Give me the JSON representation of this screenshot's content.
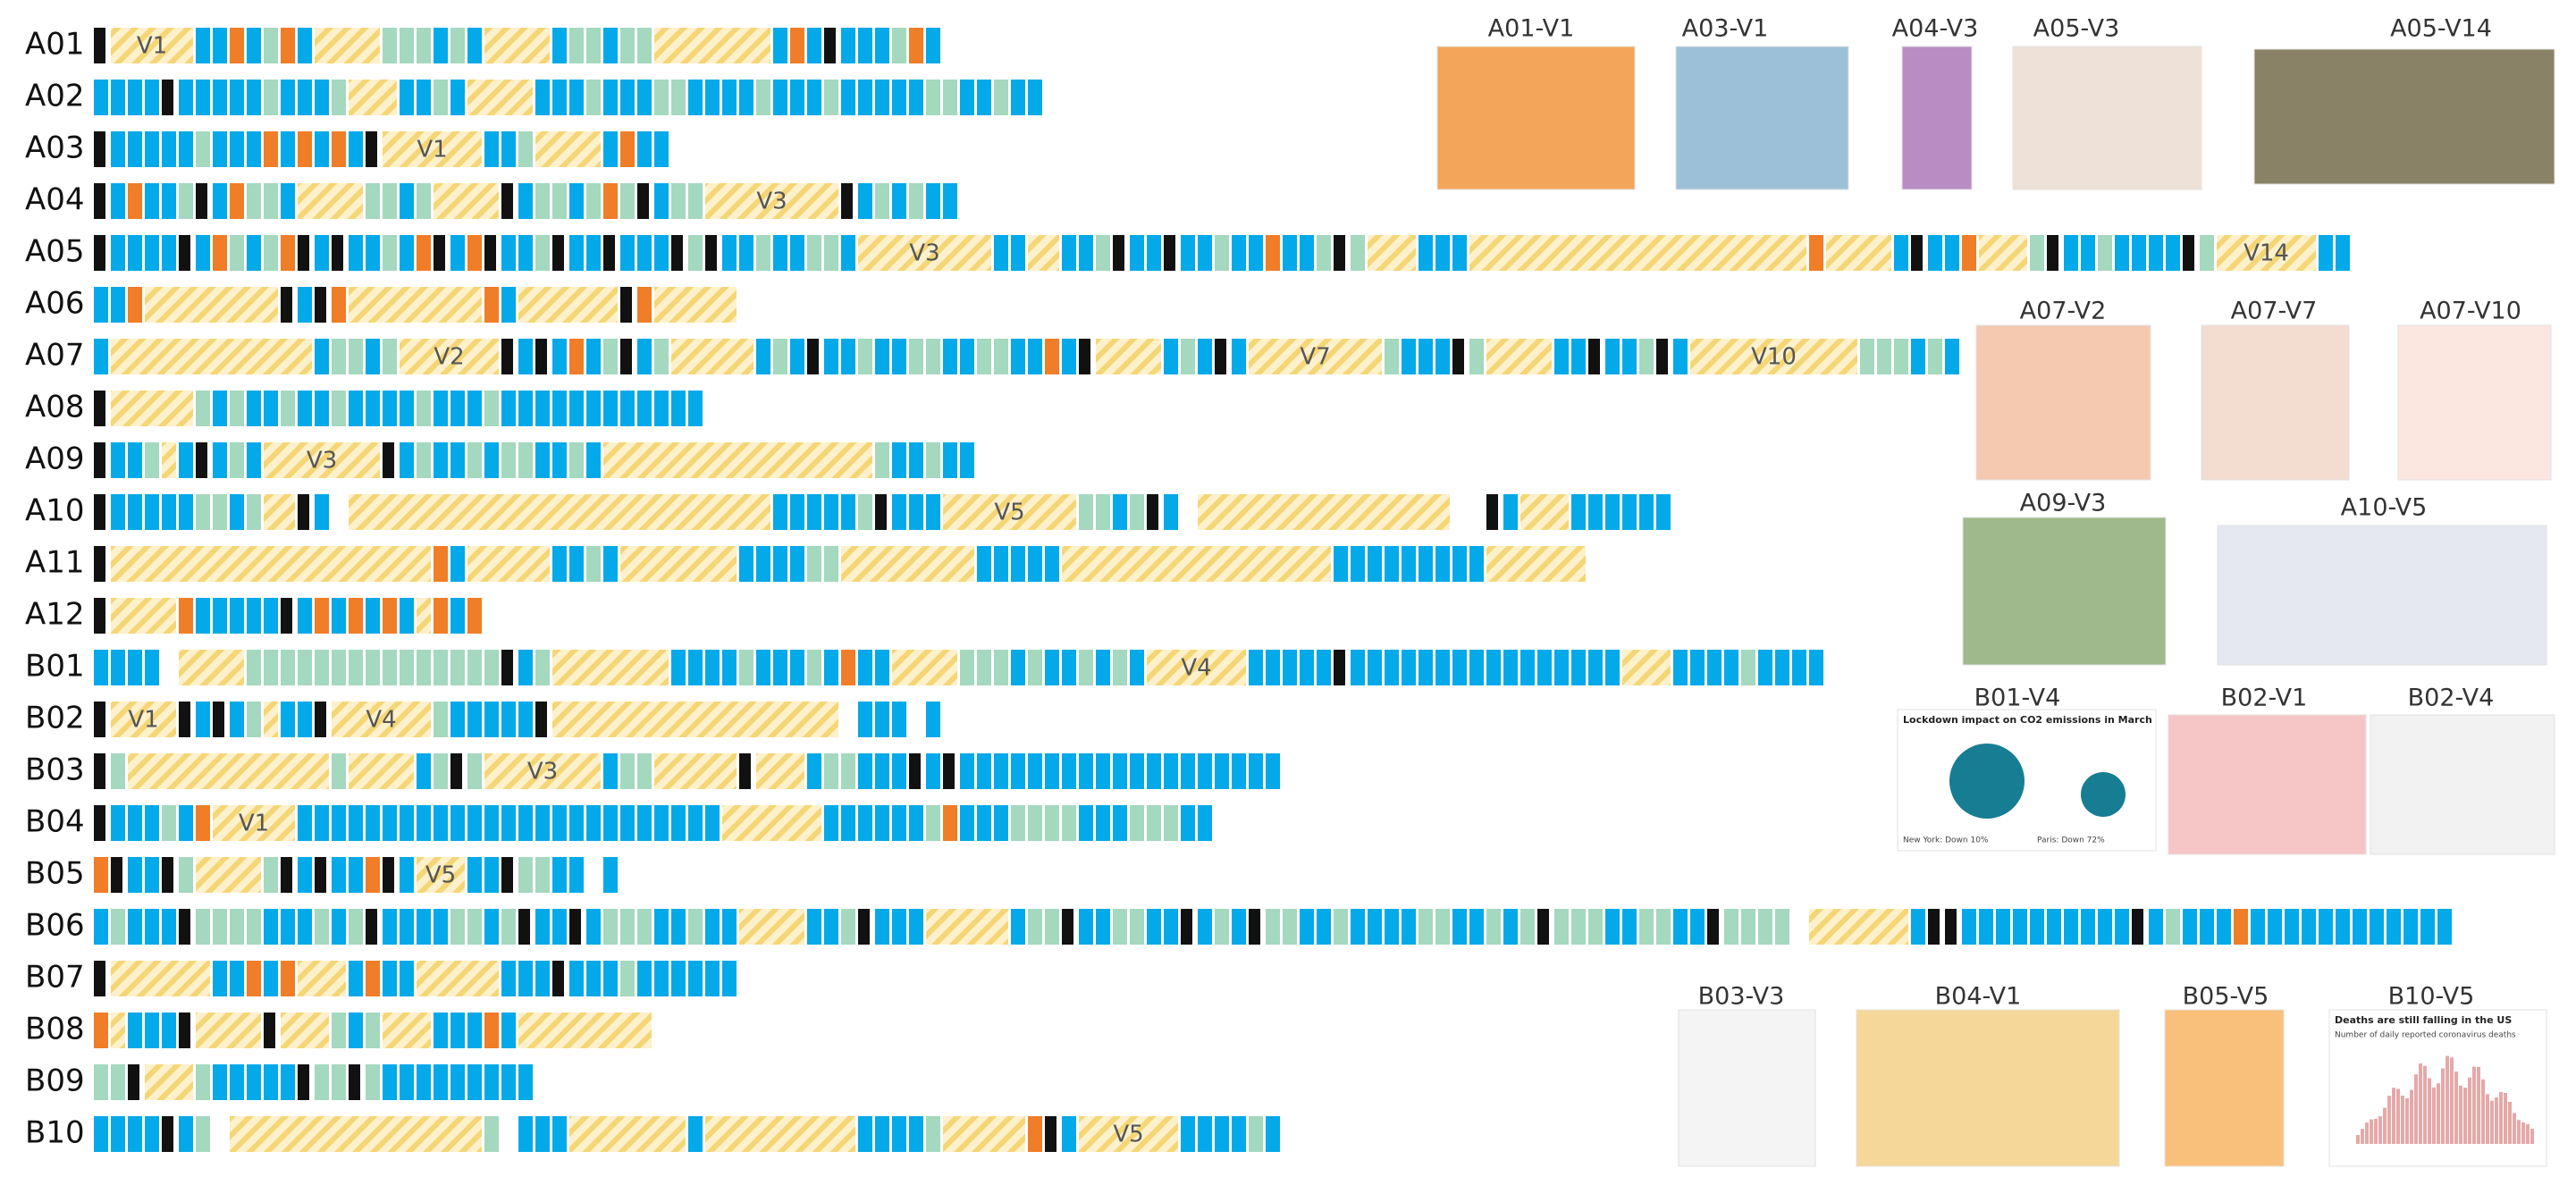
{
  "rows": [
    {
      "label": "A01",
      "cells": "KYYYYYBBOBGOBYYYYGGGBGBYYYYBGGBGGYYYYYYYBOBKBBBGOB",
      "labels": [
        {
          "text": "V1",
          "cell": 3
        }
      ]
    },
    {
      "label": "A02",
      "cells": "BBBBKBBBBBGBBBGYYYBBGBYYYYBBBGBBBGGBBBBGBBBGBBBBBGGBBGBB",
      "labels": []
    },
    {
      "label": "A03",
      "cells": "KBBBBBGBBBOBOBOBKYYYYYYBBGYYYYBOBB",
      "labels": [
        {
          "text": "V1",
          "cell": 20
        }
      ]
    },
    {
      "label": "A04",
      "cells": "KBOBBGKBOGGBYYYYGGBGYYYYKBGGBGOGKBGGYYYYYYYYKBGBGBB",
      "labels": [
        {
          "text": "V3",
          "cell": 41
        }
      ]
    },
    {
      "label": "A05",
      "cells": "KBBBBKBOGBGOKBKBBGBOKBOKBBGKBBKBBBKGKBBGBBGGBYYYYYYYYBBYYBBGKBBKBBGBBOBBGKGYYYBBBYYYYYYYYYYYYYYYYYYYYOYYYYBKBBOYYYGKBBGBBBBKGYYYYYYBB",
      "labels": [
        {
          "text": "V3",
          "cell": 48
        },
        {
          "text": "V14",
          "cell": 126
        }
      ]
    },
    {
      "label": "A06",
      "cells": "BBOYYYYYYYYKBKOYYYYYYYYOBYYYYYYKOYYYYY",
      "labels": []
    },
    {
      "label": "A07",
      "cells": "BYYYYYYYYYYYYBGGBGYYYYYYKBKBOBGKBGYYYYYBGBKBBGBBGGBBGGBBOBKYYYYBGBKBYYYYYYYYGBBBKGYYYYBBKBBGKBYYYYYYYYYYGGGBGB",
      "labels": [
        {
          "text": "V2",
          "cell": 20
        },
        {
          "text": "V7",
          "cell": 72
        },
        {
          "text": "V10",
          "cell": 100
        }
      ]
    },
    {
      "label": "A08",
      "cells": "KYYYYYGBGBBGBBGBBBBGBBBGBBBBBBBBBBBB",
      "labels": []
    },
    {
      "label": "A09",
      "cells": "KBBGYBKBGBYYYYYYYKBGBBGBGGBBGBYYYYYYYYYYYYYYYYGBBGBB",
      "labels": [
        {
          "text": "V3",
          "cell": 13
        }
      ]
    },
    {
      "label": "A10",
      "cells": "KBBBBBGGBGYYKB.YYYYYYYYYYYYYYYYYYYYYYYYYBBBBBGKBBBYYYYYYYYGGBGKB.YYYYYYYYYYYYYYY..KBYYYBBBBBB",
      "labels": [
        {
          "text": "V5",
          "cell": 51
        }
      ]
    },
    {
      "label": "A11",
      "cells": "KYYYYYYYYYYYYYYYYYYYOBYYYYYBBGBYYYYYYYBBBBGGYYYYYYYYBBBBBYYYYYYYYYYYYYYYYBBBBBBBBBYYYYYY",
      "labels": []
    },
    {
      "label": "A12",
      "cells": "KYYYYOBBBBBKBOBOBOBYOBO",
      "labels": []
    },
    {
      "label": "B01",
      "cells": "BBBB.YYYYGGGGGGGGGGGGGGGKBGYYYYYYYBBBBGBBBGBOBBYYYYGGGBGBBGBGBYYYYYYBBBBBKBBBBBBBBBBBBBBBBYYYBBBBGBBBB",
      "labels": [
        {
          "text": "V4",
          "cell": 65
        }
      ]
    },
    {
      "label": "B02",
      "cells": "KYYYYKBKBGYBBKYYYYYYGBBBBBKYYYYYYYYYYYYYYYYY.BBB.B",
      "labels": [
        {
          "text": "V1",
          "cell": 2
        },
        {
          "text": "V4",
          "cell": 17
        }
      ]
    },
    {
      "label": "B03",
      "cells": "KGYYYYYYYYYYYYGYYYYBGKGYYYYYYYBGGYYYYYKYYYBGGBBBKBKBBBBBBBBBBBBBBBBBBB",
      "labels": [
        {
          "text": "V3",
          "cell": 26
        }
      ]
    },
    {
      "label": "B04",
      "cells": "KBBBGBOYYYYYBBBBBBBBBBBBBBBBBBBBBBBBBYYYYYYBBBBBBGOBBBGGGGBBBGGGBB",
      "labels": [
        {
          "text": "V1",
          "cell": 8
        }
      ]
    },
    {
      "label": "B05",
      "cells": "OKBBKGYYYYGKBKBBOKBYYYBBKGGBB.B",
      "labels": [
        {
          "text": "V5",
          "cell": 19
        }
      ]
    },
    {
      "label": "B06",
      "cells": "BGBBBKGGGGBBBGBGKBBBBGGBGKBBKBGGGBBGBBYYYYBBGKBBBYYYYYBGGKBBGGBBKBGBKGGBBGBBBBGGBBGBGKGGGBBGGBBKGGGG.YYYYYYBKKBBBBBBBBBBKBGBBBOBBBBBBBBBBBB",
      "labels": []
    },
    {
      "label": "B07",
      "cells": "KYYYYYYBBOBOYYYBOBBYYYYYBBBKBBBGBBBBBB",
      "labels": []
    },
    {
      "label": "B08",
      "cells": "OYBBBKYYYYKYYYGBGYYYBBBOBYYYYYYYY",
      "labels": []
    },
    {
      "label": "B09",
      "cells": "GGKYYYGBBBBBKGGKGBBBBBBBBB",
      "labels": []
    },
    {
      "label": "B10",
      "cells": "BBBBKBG.YYYYYYYYYYYYYYYG.BBBYYYYYYYBYYYYYYYYYBBBBGYYYYYOKBYYYYYYBBBBGB",
      "labels": [
        {
          "text": "V5",
          "cell": 58
        }
      ]
    }
  ],
  "thumbnails": [
    {
      "label": "A01-V1"
    },
    {
      "label": "A03-V1"
    },
    {
      "label": "A04-V3"
    },
    {
      "label": "A05-V3"
    },
    {
      "label": "A05-V14"
    },
    {
      "label": "A07-V2"
    },
    {
      "label": "A07-V7"
    },
    {
      "label": "A07-V10"
    },
    {
      "label": "A09-V3"
    },
    {
      "label": "A10-V5"
    },
    {
      "label": "B01-V4",
      "caption": "Lockdown impact on CO2 emissions in March",
      "notes": [
        "New York: Down 10%",
        "Paris: Down 72%"
      ]
    },
    {
      "label": "B02-V1"
    },
    {
      "label": "B02-V4"
    },
    {
      "label": "B03-V3"
    },
    {
      "label": "B04-V1"
    },
    {
      "label": "B05-V5"
    },
    {
      "label": "B10-V5",
      "caption": "Deaths are still falling in the US",
      "notes": [
        "Number of daily reported coronavirus deaths"
      ]
    }
  ]
}
